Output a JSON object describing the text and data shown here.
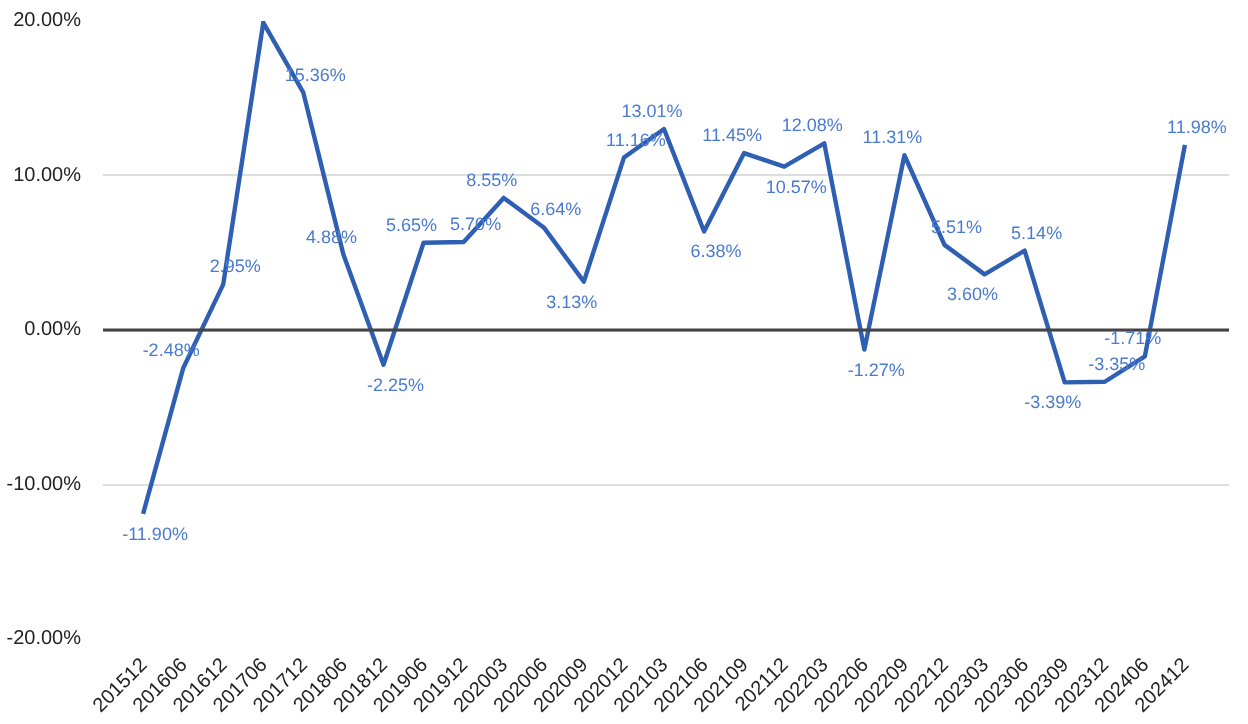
{
  "chart_data": {
    "type": "line",
    "categories": [
      "201512",
      "201606",
      "201612",
      "201706",
      "201712",
      "201806",
      "201812",
      "201906",
      "201912",
      "202003",
      "202006",
      "202009",
      "202012",
      "202103",
      "202106",
      "202109",
      "202112",
      "202203",
      "202206",
      "202209",
      "202212",
      "202303",
      "202306",
      "202309",
      "202312",
      "202406",
      "202412"
    ],
    "series": [
      {
        "color": "#2f5fb3",
        "values": [
          -11.9,
          -2.48,
          2.95,
          19.9,
          15.36,
          4.88,
          -2.25,
          5.65,
          5.7,
          8.55,
          6.64,
          3.13,
          11.16,
          13.01,
          6.38,
          11.45,
          10.57,
          12.08,
          -1.27,
          11.31,
          5.51,
          3.6,
          5.14,
          -3.39,
          -3.35,
          -1.71,
          11.98
        ],
        "value_labels": [
          "-11.90%",
          "-2.48%",
          "2.95%",
          null,
          "15.36%",
          "4.88%",
          "-2.25%",
          "5.65%",
          "5.70%",
          "8.55%",
          "6.64%",
          "3.13%",
          "11.16%",
          "13.01%",
          "6.38%",
          "11.45%",
          "10.57%",
          "12.08%",
          "-1.27%",
          "11.31%",
          "5.51%",
          "3.60%",
          "5.14%",
          "-3.39%",
          "-3.35%",
          "-1.71%",
          "11.98%"
        ]
      }
    ],
    "ylim": [
      -20,
      20
    ],
    "yticks": [
      {
        "value": -20,
        "label": "-20.00%"
      },
      {
        "value": -10,
        "label": "-10.00%"
      },
      {
        "value": 0,
        "label": "0.00%"
      },
      {
        "value": 10,
        "label": "10.00%"
      },
      {
        "value": 20,
        "label": "20.00%"
      }
    ],
    "ref_lines": [
      {
        "axis": "y",
        "value": 0,
        "label": null,
        "color": "#444444"
      }
    ],
    "grid": "y",
    "marker": "none",
    "line_style": "solid"
  }
}
